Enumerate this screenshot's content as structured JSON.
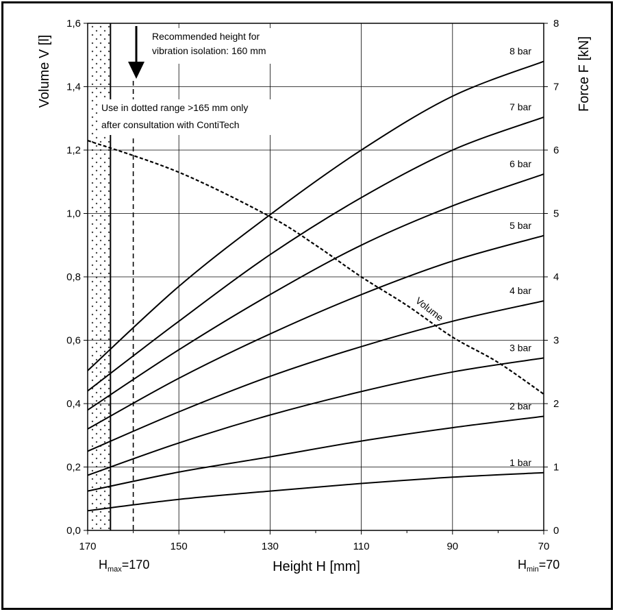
{
  "chart_data": {
    "type": "line",
    "title": "",
    "xlabel": "Height H [mm]",
    "ylabel_left": "Volume V [l]",
    "ylabel_right": "Force F [kN]",
    "x_reversed": true,
    "xlim": [
      170,
      70
    ],
    "ylim_left": [
      0,
      1.6
    ],
    "ylim_right": [
      0,
      8
    ],
    "x_ticks": [
      170,
      150,
      130,
      110,
      90,
      70
    ],
    "x_tick_labels": [
      "170",
      "150",
      "130",
      "110",
      "90",
      "70"
    ],
    "y_left_ticks": [
      0,
      0.2,
      0.4,
      0.6,
      0.8,
      1.0,
      1.2,
      1.4,
      1.6
    ],
    "y_left_tick_labels": [
      "0,0",
      "0,2",
      "0,4",
      "0,6",
      "0,8",
      "1,0",
      "1,2",
      "1,4",
      "1,6"
    ],
    "y_right_ticks": [
      0,
      1,
      2,
      3,
      4,
      5,
      6,
      7,
      8
    ],
    "y_right_tick_labels": [
      "0",
      "1",
      "2",
      "3",
      "4",
      "5",
      "6",
      "7",
      "8"
    ],
    "grid": true,
    "h_max": {
      "prefix": "H",
      "sub": "max",
      "suffix": "=170"
    },
    "h_min": {
      "prefix": "H",
      "sub": "min",
      "suffix": "=70"
    },
    "annotations": {
      "recommended": [
        "Recommended height for",
        "vibration isolation: 160 mm"
      ],
      "dotted_range": [
        "Use in dotted range >165 mm only",
        "after consultation with ContiTech"
      ]
    },
    "recommended_height": 160,
    "dotted_range": [
      165,
      170
    ],
    "force_series": [
      {
        "name": "1 bar",
        "axis": "right",
        "x": [
          170,
          150,
          130,
          110,
          90,
          70
        ],
        "values": [
          0.31,
          0.49,
          0.62,
          0.74,
          0.84,
          0.91
        ]
      },
      {
        "name": "2 bar",
        "axis": "right",
        "x": [
          170,
          150,
          130,
          110,
          90,
          70
        ],
        "values": [
          0.62,
          0.92,
          1.16,
          1.41,
          1.62,
          1.8
        ]
      },
      {
        "name": "3 bar",
        "axis": "right",
        "x": [
          170,
          150,
          130,
          110,
          90,
          70
        ],
        "values": [
          0.87,
          1.38,
          1.82,
          2.19,
          2.5,
          2.72
        ]
      },
      {
        "name": "4 bar",
        "axis": "right",
        "x": [
          170,
          150,
          130,
          110,
          90,
          70
        ],
        "values": [
          1.25,
          1.87,
          2.43,
          2.9,
          3.3,
          3.62
        ]
      },
      {
        "name": "5 bar",
        "axis": "right",
        "x": [
          170,
          150,
          130,
          110,
          90,
          70
        ],
        "values": [
          1.6,
          2.4,
          3.1,
          3.72,
          4.25,
          4.65
        ]
      },
      {
        "name": "6 bar",
        "axis": "right",
        "x": [
          170,
          150,
          130,
          110,
          90,
          70
        ],
        "values": [
          1.9,
          2.85,
          3.72,
          4.5,
          5.12,
          5.62
        ]
      },
      {
        "name": "7 bar",
        "axis": "right",
        "x": [
          170,
          150,
          130,
          110,
          90,
          70
        ],
        "values": [
          2.2,
          3.3,
          4.35,
          5.25,
          6.0,
          6.52
        ]
      },
      {
        "name": "8 bar",
        "axis": "right",
        "x": [
          170,
          150,
          130,
          110,
          90,
          70
        ],
        "values": [
          2.52,
          3.85,
          4.98,
          6.0,
          6.85,
          7.4
        ]
      }
    ],
    "volume_series": {
      "name": "Volume",
      "axis": "left",
      "style": "dashed",
      "x": [
        170,
        150,
        130,
        120,
        110,
        100,
        90,
        80,
        70
      ],
      "values": [
        1.23,
        1.13,
        0.99,
        0.9,
        0.8,
        0.71,
        0.61,
        0.53,
        0.43
      ]
    }
  }
}
